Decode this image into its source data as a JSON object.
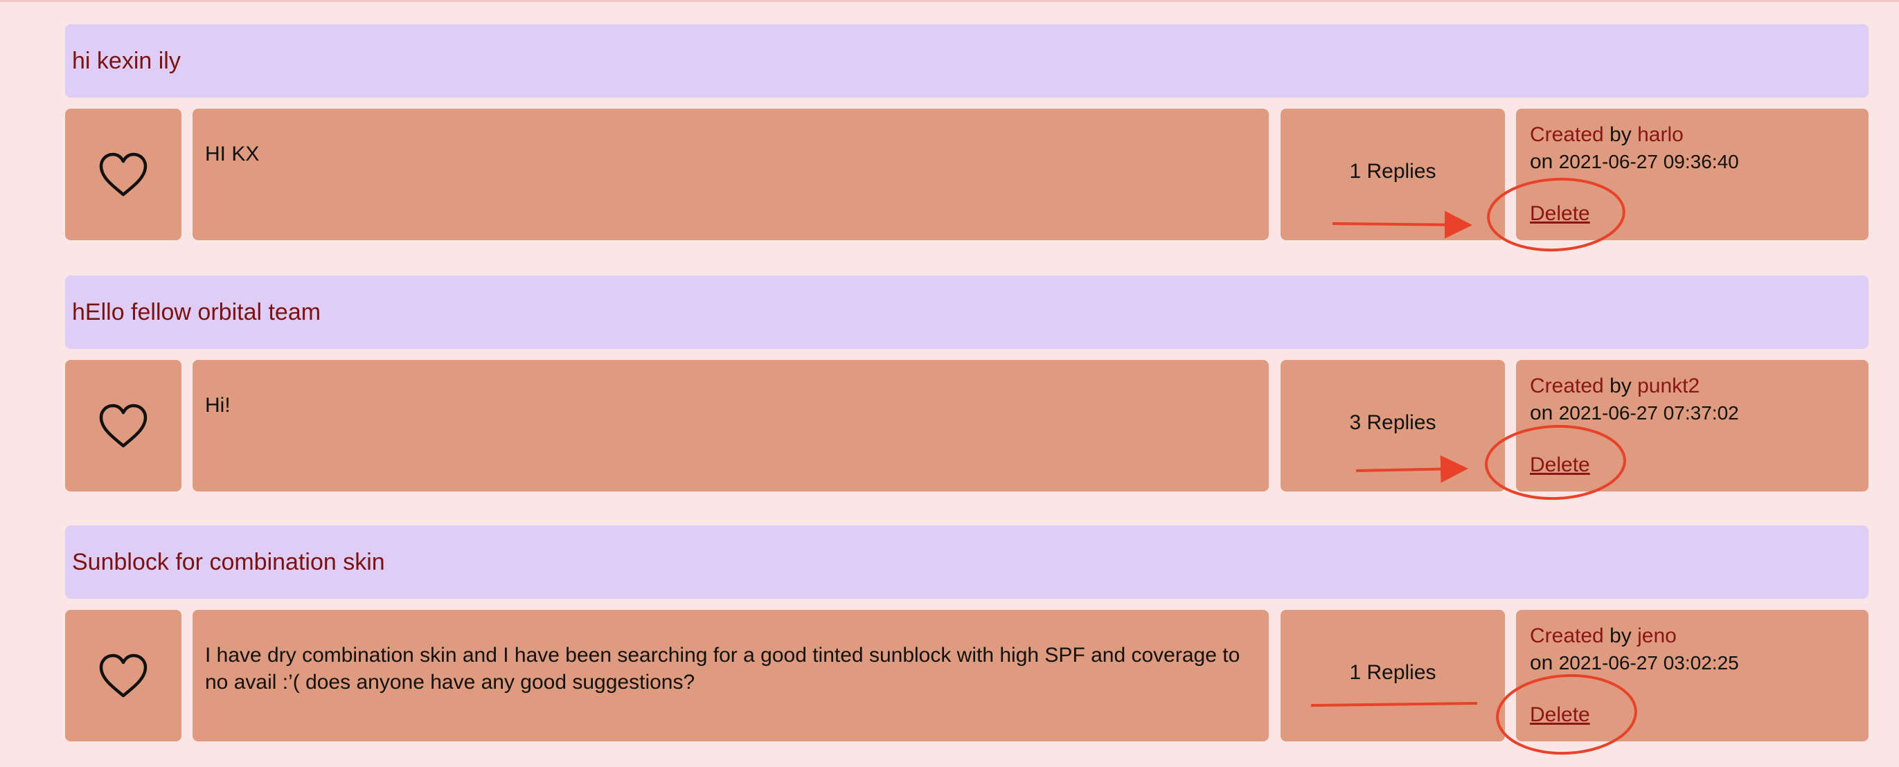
{
  "posts": [
    {
      "title": "hi kexin ily",
      "body": "HI KX",
      "replies": "1 Replies",
      "created_label": "Created",
      "by_label": "by",
      "author": "harlo",
      "on_label": "on",
      "timestamp": "2021-06-27 09:36:40",
      "delete_label": "Delete"
    },
    {
      "title": "hEllo fellow orbital team",
      "body": "Hi!",
      "replies": "3 Replies",
      "created_label": "Created",
      "by_label": "by",
      "author": "punkt2",
      "on_label": "on",
      "timestamp": "2021-06-27 07:37:02",
      "delete_label": "Delete"
    },
    {
      "title": "Sunblock for combination skin",
      "body": "I have dry combination skin and I have been searching for a good tinted sunblock with high SPF and coverage to no avail :’( does anyone have any good suggestions?",
      "replies": "1 Replies",
      "created_label": "Created",
      "by_label": "by",
      "author": "jeno",
      "on_label": "on",
      "timestamp": "2021-06-27 03:02:25",
      "delete_label": "Delete"
    }
  ],
  "icons": {
    "like": "heart-outline-icon"
  },
  "colors": {
    "page_background": "#fbe6e6",
    "title_bar": "#dfcdf6",
    "card": "#de9b7f",
    "accent_text": "#8b1515",
    "annotation": "#e8422a"
  }
}
